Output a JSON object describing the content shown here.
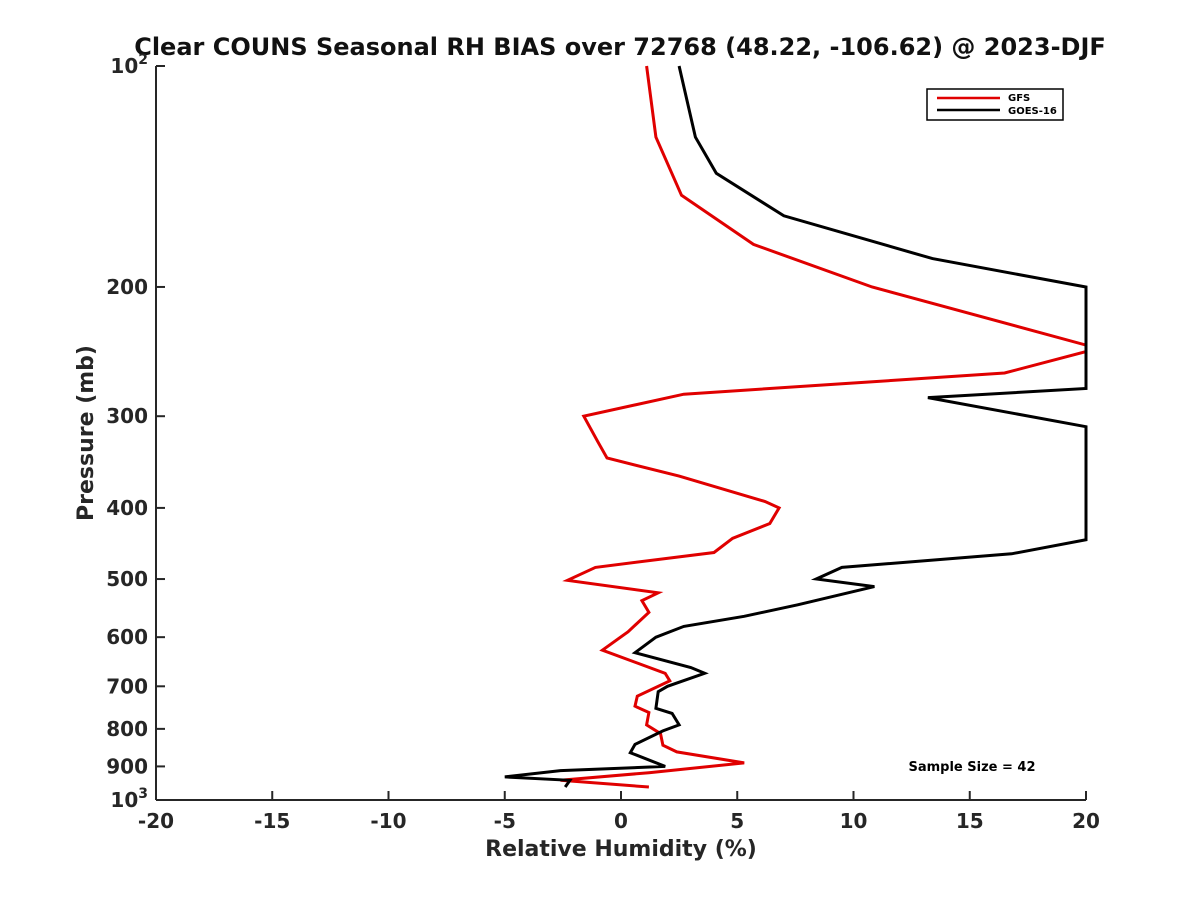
{
  "chart_data": {
    "type": "line",
    "title": "Clear COUNS Seasonal RH BIAS over 72768 (48.22, -106.62) @ 2023-DJF",
    "xlabel": "Relative Humidity (%)",
    "ylabel": "Pressure (mb)",
    "xlim": [
      -20,
      20
    ],
    "ylim": [
      1000,
      100
    ],
    "yscale": "log",
    "x_ticks": [
      -20,
      -15,
      -10,
      -5,
      0,
      5,
      10,
      15,
      20
    ],
    "x_tick_labels": [
      "-20",
      "-15",
      "-10",
      "-5",
      "0",
      "5",
      "10",
      "15",
      "20"
    ],
    "y_ticks": [
      100,
      200,
      300,
      400,
      500,
      600,
      700,
      800,
      900,
      1000
    ],
    "y_tick_labels": [
      {
        "base": "10",
        "exp": "2"
      },
      {
        "base": "200",
        "exp": ""
      },
      {
        "base": "300",
        "exp": ""
      },
      {
        "base": "400",
        "exp": ""
      },
      {
        "base": "500",
        "exp": ""
      },
      {
        "base": "600",
        "exp": ""
      },
      {
        "base": "700",
        "exp": ""
      },
      {
        "base": "800",
        "exp": ""
      },
      {
        "base": "900",
        "exp": ""
      },
      {
        "base": "10",
        "exp": "3"
      }
    ],
    "legend_position": "top-right",
    "annotation": "Sample Size = 42",
    "series": [
      {
        "name": "GFS",
        "color": "#e00000",
        "points": [
          [
            1.1,
            100
          ],
          [
            1.5,
            125
          ],
          [
            2.6,
            150
          ],
          [
            5.7,
            175
          ],
          [
            10.8,
            200
          ],
          [
            20.0,
            240
          ],
          [
            20.0,
            245
          ],
          [
            16.5,
            262
          ],
          [
            2.7,
            280
          ],
          [
            -1.6,
            300
          ],
          [
            -1.0,
            325
          ],
          [
            -0.6,
            342
          ],
          [
            2.5,
            362
          ],
          [
            6.2,
            392
          ],
          [
            6.8,
            400
          ],
          [
            6.4,
            420
          ],
          [
            4.8,
            440
          ],
          [
            4.0,
            460
          ],
          [
            -1.1,
            482
          ],
          [
            -2.3,
            502
          ],
          [
            1.6,
            522
          ],
          [
            0.9,
            535
          ],
          [
            1.2,
            555
          ],
          [
            0.3,
            590
          ],
          [
            -0.8,
            625
          ],
          [
            1.9,
            672
          ],
          [
            2.1,
            688
          ],
          [
            0.7,
            722
          ],
          [
            0.6,
            745
          ],
          [
            1.2,
            760
          ],
          [
            1.1,
            790
          ],
          [
            1.7,
            812
          ],
          [
            1.8,
            842
          ],
          [
            2.4,
            860
          ],
          [
            5.3,
            890
          ],
          [
            1.2,
            918
          ],
          [
            -2.6,
            940
          ],
          [
            1.2,
            960
          ]
        ]
      },
      {
        "name": "GOES-16",
        "color": "#000000",
        "points": [
          [
            2.5,
            100
          ],
          [
            3.2,
            125
          ],
          [
            4.1,
            140
          ],
          [
            7.0,
            160
          ],
          [
            13.4,
            183
          ],
          [
            20.0,
            200
          ],
          [
            20.0,
            275
          ],
          [
            13.2,
            283
          ],
          [
            20.0,
            310
          ],
          [
            20.0,
            442
          ],
          [
            16.8,
            462
          ],
          [
            9.5,
            482
          ],
          [
            8.4,
            500
          ],
          [
            10.9,
            512
          ],
          [
            7.6,
            542
          ],
          [
            5.3,
            562
          ],
          [
            2.7,
            580
          ],
          [
            1.5,
            600
          ],
          [
            0.6,
            630
          ],
          [
            3.0,
            660
          ],
          [
            3.6,
            672
          ],
          [
            2.0,
            700
          ],
          [
            1.6,
            712
          ],
          [
            1.5,
            750
          ],
          [
            2.2,
            762
          ],
          [
            2.5,
            790
          ],
          [
            1.8,
            805
          ],
          [
            0.6,
            840
          ],
          [
            0.4,
            862
          ],
          [
            1.9,
            900
          ],
          [
            -2.6,
            912
          ],
          [
            -5.0,
            930
          ],
          [
            -2.2,
            940
          ],
          [
            -2.4,
            960
          ]
        ]
      }
    ]
  }
}
